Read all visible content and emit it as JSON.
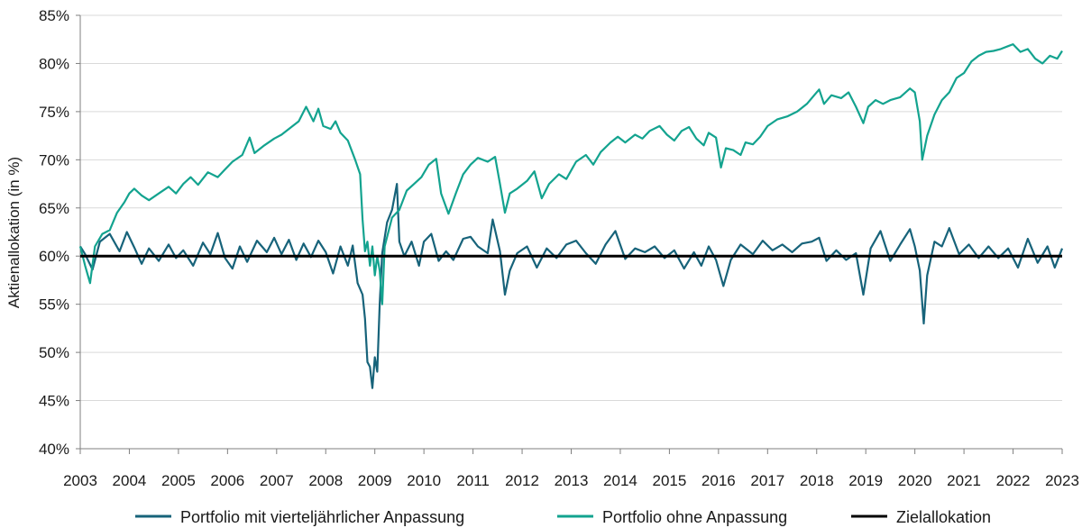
{
  "chart_data": {
    "type": "line",
    "title": "",
    "xlabel": "",
    "ylabel": "Aktienallokation (in %)",
    "x_range": [
      2003,
      2023
    ],
    "ylim": [
      40,
      85
    ],
    "x_ticks": [
      "2003",
      "2004",
      "2005",
      "2006",
      "2007",
      "2008",
      "2009",
      "2010",
      "2011",
      "2012",
      "2013",
      "2014",
      "2015",
      "2016",
      "2017",
      "2018",
      "2019",
      "2020",
      "2021",
      "2022",
      "2023"
    ],
    "y_ticks": [
      "40%",
      "45%",
      "50%",
      "55%",
      "60%",
      "65%",
      "70%",
      "75%",
      "80%",
      "85%"
    ],
    "y_tick_values": [
      40,
      45,
      50,
      55,
      60,
      65,
      70,
      75,
      80,
      85
    ],
    "grid": "horizontal",
    "legend_position": "bottom",
    "series": [
      {
        "name": "Portfolio mit vierteljährlicher Anpassung",
        "color": "#17637a",
        "points": [
          [
            2003.0,
            61.0
          ],
          [
            2003.1,
            60.2
          ],
          [
            2003.25,
            58.6
          ],
          [
            2003.4,
            61.5
          ],
          [
            2003.6,
            62.3
          ],
          [
            2003.8,
            60.5
          ],
          [
            2003.95,
            62.5
          ],
          [
            2004.1,
            60.9
          ],
          [
            2004.25,
            59.2
          ],
          [
            2004.4,
            60.8
          ],
          [
            2004.6,
            59.5
          ],
          [
            2004.8,
            61.2
          ],
          [
            2004.95,
            59.8
          ],
          [
            2005.1,
            60.6
          ],
          [
            2005.3,
            59.0
          ],
          [
            2005.5,
            61.4
          ],
          [
            2005.65,
            60.2
          ],
          [
            2005.8,
            62.4
          ],
          [
            2005.95,
            59.8
          ],
          [
            2006.1,
            58.7
          ],
          [
            2006.25,
            61.0
          ],
          [
            2006.4,
            59.4
          ],
          [
            2006.6,
            61.6
          ],
          [
            2006.8,
            60.4
          ],
          [
            2006.95,
            61.9
          ],
          [
            2007.1,
            60.2
          ],
          [
            2007.25,
            61.7
          ],
          [
            2007.4,
            59.6
          ],
          [
            2007.55,
            61.3
          ],
          [
            2007.7,
            59.9
          ],
          [
            2007.85,
            61.6
          ],
          [
            2008.0,
            60.4
          ],
          [
            2008.15,
            58.2
          ],
          [
            2008.3,
            61.0
          ],
          [
            2008.45,
            59.0
          ],
          [
            2008.55,
            61.1
          ],
          [
            2008.65,
            57.2
          ],
          [
            2008.75,
            56.0
          ],
          [
            2008.8,
            53.5
          ],
          [
            2008.85,
            49.0
          ],
          [
            2008.9,
            48.5
          ],
          [
            2008.95,
            46.3
          ],
          [
            2009.0,
            49.5
          ],
          [
            2009.05,
            48.0
          ],
          [
            2009.1,
            55.0
          ],
          [
            2009.15,
            60.3
          ],
          [
            2009.25,
            63.5
          ],
          [
            2009.35,
            64.8
          ],
          [
            2009.45,
            67.5
          ],
          [
            2009.5,
            61.5
          ],
          [
            2009.6,
            60.0
          ],
          [
            2009.75,
            61.5
          ],
          [
            2009.9,
            59.0
          ],
          [
            2010.0,
            61.5
          ],
          [
            2010.15,
            62.3
          ],
          [
            2010.3,
            59.5
          ],
          [
            2010.45,
            60.5
          ],
          [
            2010.6,
            59.6
          ],
          [
            2010.8,
            61.8
          ],
          [
            2010.95,
            62.0
          ],
          [
            2011.1,
            61.0
          ],
          [
            2011.3,
            60.3
          ],
          [
            2011.4,
            63.8
          ],
          [
            2011.55,
            60.5
          ],
          [
            2011.65,
            56.0
          ],
          [
            2011.75,
            58.5
          ],
          [
            2011.9,
            60.3
          ],
          [
            2012.1,
            61.0
          ],
          [
            2012.3,
            58.8
          ],
          [
            2012.5,
            60.8
          ],
          [
            2012.7,
            59.8
          ],
          [
            2012.9,
            61.2
          ],
          [
            2013.1,
            61.6
          ],
          [
            2013.3,
            60.3
          ],
          [
            2013.5,
            59.2
          ],
          [
            2013.7,
            61.2
          ],
          [
            2013.9,
            62.6
          ],
          [
            2014.1,
            59.7
          ],
          [
            2014.3,
            60.8
          ],
          [
            2014.5,
            60.4
          ],
          [
            2014.7,
            61.0
          ],
          [
            2014.9,
            59.8
          ],
          [
            2015.1,
            60.6
          ],
          [
            2015.3,
            58.7
          ],
          [
            2015.5,
            60.4
          ],
          [
            2015.65,
            59.0
          ],
          [
            2015.8,
            61.0
          ],
          [
            2015.95,
            59.6
          ],
          [
            2016.1,
            56.9
          ],
          [
            2016.25,
            59.6
          ],
          [
            2016.45,
            61.2
          ],
          [
            2016.7,
            60.2
          ],
          [
            2016.9,
            61.6
          ],
          [
            2017.1,
            60.6
          ],
          [
            2017.3,
            61.2
          ],
          [
            2017.5,
            60.4
          ],
          [
            2017.7,
            61.3
          ],
          [
            2017.9,
            61.5
          ],
          [
            2018.05,
            61.9
          ],
          [
            2018.2,
            59.5
          ],
          [
            2018.4,
            60.6
          ],
          [
            2018.6,
            59.6
          ],
          [
            2018.8,
            60.3
          ],
          [
            2018.95,
            56.0
          ],
          [
            2019.1,
            60.8
          ],
          [
            2019.3,
            62.6
          ],
          [
            2019.5,
            59.5
          ],
          [
            2019.7,
            61.2
          ],
          [
            2019.9,
            62.8
          ],
          [
            2020.0,
            61.0
          ],
          [
            2020.1,
            58.5
          ],
          [
            2020.18,
            53.0
          ],
          [
            2020.25,
            58.0
          ],
          [
            2020.4,
            61.5
          ],
          [
            2020.55,
            61.0
          ],
          [
            2020.7,
            62.9
          ],
          [
            2020.9,
            60.2
          ],
          [
            2021.1,
            61.2
          ],
          [
            2021.3,
            59.8
          ],
          [
            2021.5,
            61.0
          ],
          [
            2021.7,
            59.8
          ],
          [
            2021.9,
            60.8
          ],
          [
            2022.1,
            58.8
          ],
          [
            2022.3,
            61.8
          ],
          [
            2022.5,
            59.3
          ],
          [
            2022.7,
            61.0
          ],
          [
            2022.85,
            58.8
          ],
          [
            2023.0,
            60.8
          ]
        ]
      },
      {
        "name": "Portfolio ohne Anpassung",
        "color": "#13a38f",
        "points": [
          [
            2003.0,
            61.0
          ],
          [
            2003.1,
            59.0
          ],
          [
            2003.2,
            57.2
          ],
          [
            2003.3,
            61.0
          ],
          [
            2003.45,
            62.3
          ],
          [
            2003.6,
            62.7
          ],
          [
            2003.75,
            64.5
          ],
          [
            2003.9,
            65.6
          ],
          [
            2004.0,
            66.5
          ],
          [
            2004.1,
            67.0
          ],
          [
            2004.25,
            66.3
          ],
          [
            2004.4,
            65.8
          ],
          [
            2004.6,
            66.5
          ],
          [
            2004.8,
            67.2
          ],
          [
            2004.95,
            66.5
          ],
          [
            2005.1,
            67.5
          ],
          [
            2005.25,
            68.2
          ],
          [
            2005.4,
            67.4
          ],
          [
            2005.6,
            68.7
          ],
          [
            2005.8,
            68.2
          ],
          [
            2005.95,
            69.0
          ],
          [
            2006.1,
            69.8
          ],
          [
            2006.3,
            70.5
          ],
          [
            2006.45,
            72.3
          ],
          [
            2006.55,
            70.7
          ],
          [
            2006.75,
            71.5
          ],
          [
            2006.95,
            72.2
          ],
          [
            2007.1,
            72.6
          ],
          [
            2007.3,
            73.4
          ],
          [
            2007.45,
            74.0
          ],
          [
            2007.6,
            75.5
          ],
          [
            2007.75,
            74.0
          ],
          [
            2007.85,
            75.3
          ],
          [
            2007.95,
            73.5
          ],
          [
            2008.1,
            73.2
          ],
          [
            2008.2,
            74.0
          ],
          [
            2008.3,
            72.8
          ],
          [
            2008.45,
            72.0
          ],
          [
            2008.6,
            70.0
          ],
          [
            2008.7,
            68.5
          ],
          [
            2008.75,
            63.8
          ],
          [
            2008.8,
            60.5
          ],
          [
            2008.85,
            61.5
          ],
          [
            2008.9,
            59.0
          ],
          [
            2008.95,
            61.0
          ],
          [
            2009.0,
            58.0
          ],
          [
            2009.05,
            60.0
          ],
          [
            2009.1,
            58.5
          ],
          [
            2009.15,
            55.0
          ],
          [
            2009.2,
            61.0
          ],
          [
            2009.35,
            64.0
          ],
          [
            2009.5,
            64.8
          ],
          [
            2009.65,
            66.8
          ],
          [
            2009.8,
            67.5
          ],
          [
            2009.95,
            68.2
          ],
          [
            2010.1,
            69.5
          ],
          [
            2010.25,
            70.1
          ],
          [
            2010.35,
            66.5
          ],
          [
            2010.5,
            64.4
          ],
          [
            2010.65,
            66.5
          ],
          [
            2010.8,
            68.5
          ],
          [
            2010.95,
            69.5
          ],
          [
            2011.1,
            70.2
          ],
          [
            2011.3,
            69.8
          ],
          [
            2011.45,
            70.3
          ],
          [
            2011.55,
            67.5
          ],
          [
            2011.65,
            64.5
          ],
          [
            2011.75,
            66.5
          ],
          [
            2011.9,
            67.0
          ],
          [
            2012.1,
            67.8
          ],
          [
            2012.25,
            68.8
          ],
          [
            2012.4,
            66.0
          ],
          [
            2012.55,
            67.5
          ],
          [
            2012.75,
            68.5
          ],
          [
            2012.9,
            68.0
          ],
          [
            2013.1,
            69.8
          ],
          [
            2013.3,
            70.5
          ],
          [
            2013.45,
            69.5
          ],
          [
            2013.6,
            70.8
          ],
          [
            2013.8,
            71.8
          ],
          [
            2013.95,
            72.4
          ],
          [
            2014.1,
            71.8
          ],
          [
            2014.3,
            72.6
          ],
          [
            2014.45,
            72.2
          ],
          [
            2014.6,
            73.0
          ],
          [
            2014.8,
            73.5
          ],
          [
            2014.95,
            72.6
          ],
          [
            2015.1,
            72.0
          ],
          [
            2015.25,
            73.0
          ],
          [
            2015.4,
            73.4
          ],
          [
            2015.55,
            72.2
          ],
          [
            2015.7,
            71.5
          ],
          [
            2015.8,
            72.8
          ],
          [
            2015.95,
            72.3
          ],
          [
            2016.05,
            69.2
          ],
          [
            2016.15,
            71.2
          ],
          [
            2016.3,
            71.0
          ],
          [
            2016.45,
            70.5
          ],
          [
            2016.55,
            71.8
          ],
          [
            2016.7,
            71.6
          ],
          [
            2016.85,
            72.4
          ],
          [
            2017.0,
            73.5
          ],
          [
            2017.2,
            74.2
          ],
          [
            2017.4,
            74.5
          ],
          [
            2017.6,
            75.0
          ],
          [
            2017.8,
            75.8
          ],
          [
            2017.95,
            76.7
          ],
          [
            2018.05,
            77.3
          ],
          [
            2018.15,
            75.8
          ],
          [
            2018.3,
            76.7
          ],
          [
            2018.5,
            76.4
          ],
          [
            2018.65,
            77.0
          ],
          [
            2018.8,
            75.5
          ],
          [
            2018.95,
            73.8
          ],
          [
            2019.05,
            75.5
          ],
          [
            2019.2,
            76.2
          ],
          [
            2019.35,
            75.8
          ],
          [
            2019.5,
            76.2
          ],
          [
            2019.7,
            76.5
          ],
          [
            2019.9,
            77.4
          ],
          [
            2020.0,
            77.0
          ],
          [
            2020.1,
            74.0
          ],
          [
            2020.15,
            70.0
          ],
          [
            2020.25,
            72.5
          ],
          [
            2020.4,
            74.7
          ],
          [
            2020.55,
            76.2
          ],
          [
            2020.7,
            77.0
          ],
          [
            2020.85,
            78.5
          ],
          [
            2021.0,
            79.0
          ],
          [
            2021.15,
            80.2
          ],
          [
            2021.3,
            80.8
          ],
          [
            2021.45,
            81.2
          ],
          [
            2021.6,
            81.3
          ],
          [
            2021.75,
            81.5
          ],
          [
            2021.9,
            81.8
          ],
          [
            2022.0,
            82.0
          ],
          [
            2022.15,
            81.2
          ],
          [
            2022.3,
            81.5
          ],
          [
            2022.45,
            80.5
          ],
          [
            2022.6,
            80.0
          ],
          [
            2022.75,
            80.8
          ],
          [
            2022.9,
            80.5
          ],
          [
            2023.0,
            81.3
          ]
        ]
      },
      {
        "name": "Zielallokation",
        "color": "#000000",
        "points": [
          [
            2003.0,
            60.0
          ],
          [
            2023.0,
            60.0
          ]
        ]
      }
    ]
  }
}
